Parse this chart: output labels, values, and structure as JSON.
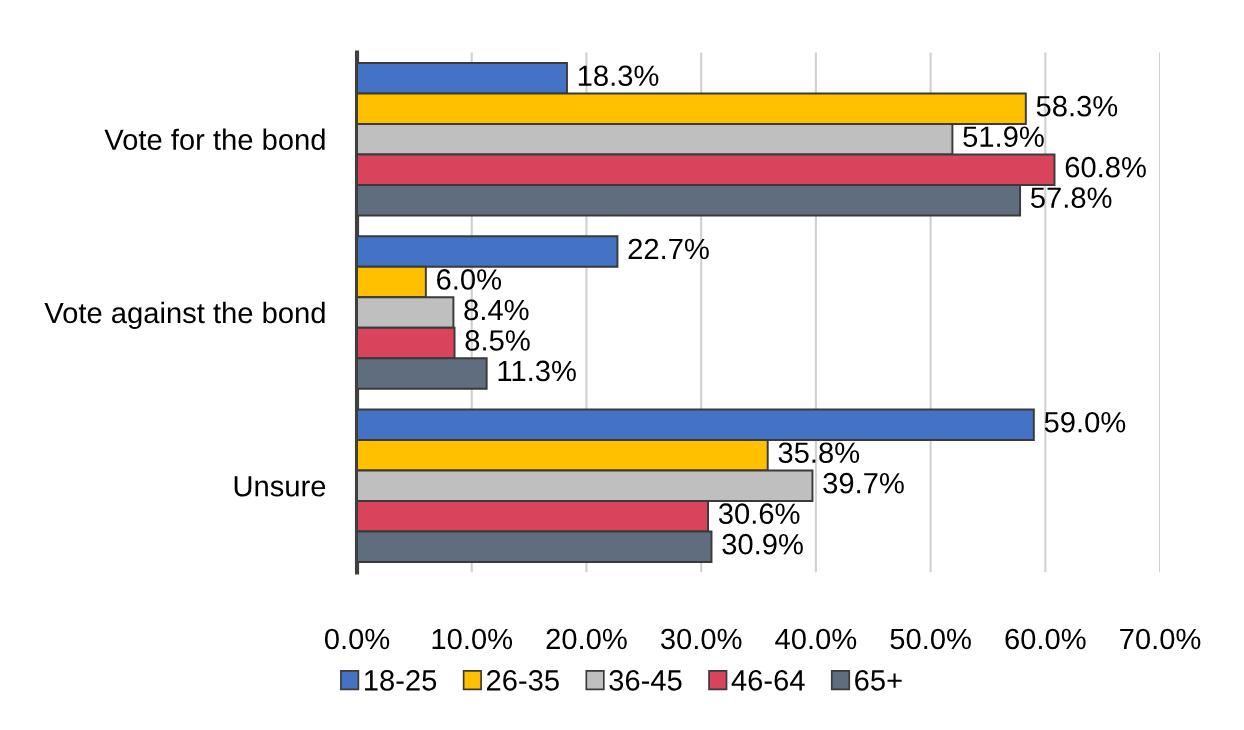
{
  "chart_data": {
    "type": "bar",
    "orientation": "horizontal",
    "categories": [
      "Vote for the bond",
      "Vote against the bond",
      "Unsure"
    ],
    "series": [
      {
        "name": "18-25",
        "color": "#4472c4",
        "values": [
          18.3,
          22.7,
          59.0
        ],
        "value_labels": [
          "18.3%",
          "22.7%",
          "59.0%"
        ]
      },
      {
        "name": "26-35",
        "color": "#ffc000",
        "values": [
          58.3,
          6.0,
          35.8
        ],
        "value_labels": [
          "58.3%",
          "6.0%",
          "35.8%"
        ]
      },
      {
        "name": "36-45",
        "color": "#bfbfbf",
        "values": [
          51.9,
          8.4,
          39.7
        ],
        "value_labels": [
          "51.9%",
          "8.4%",
          "39.7%"
        ]
      },
      {
        "name": "46-64",
        "color": "#d9445c",
        "values": [
          60.8,
          8.5,
          30.6
        ],
        "value_labels": [
          "60.8%",
          "8.5%",
          "30.6%"
        ]
      },
      {
        "name": "65+",
        "color": "#5f6d7f",
        "values": [
          57.8,
          11.3,
          30.9
        ],
        "value_labels": [
          "57.8%",
          "11.3%",
          "30.9%"
        ]
      }
    ],
    "xlim": [
      0,
      70
    ],
    "xticks": [
      {
        "value": 0,
        "label": "0.0%"
      },
      {
        "value": 10,
        "label": "10.0%"
      },
      {
        "value": 20,
        "label": "20.0%"
      },
      {
        "value": 30,
        "label": "30.0%"
      },
      {
        "value": 40,
        "label": "40.0%"
      },
      {
        "value": 50,
        "label": "50.0%"
      },
      {
        "value": 60,
        "label": "60.0%"
      },
      {
        "value": 70,
        "label": "70.0%"
      }
    ],
    "grid": "x",
    "legend": "bottom"
  }
}
